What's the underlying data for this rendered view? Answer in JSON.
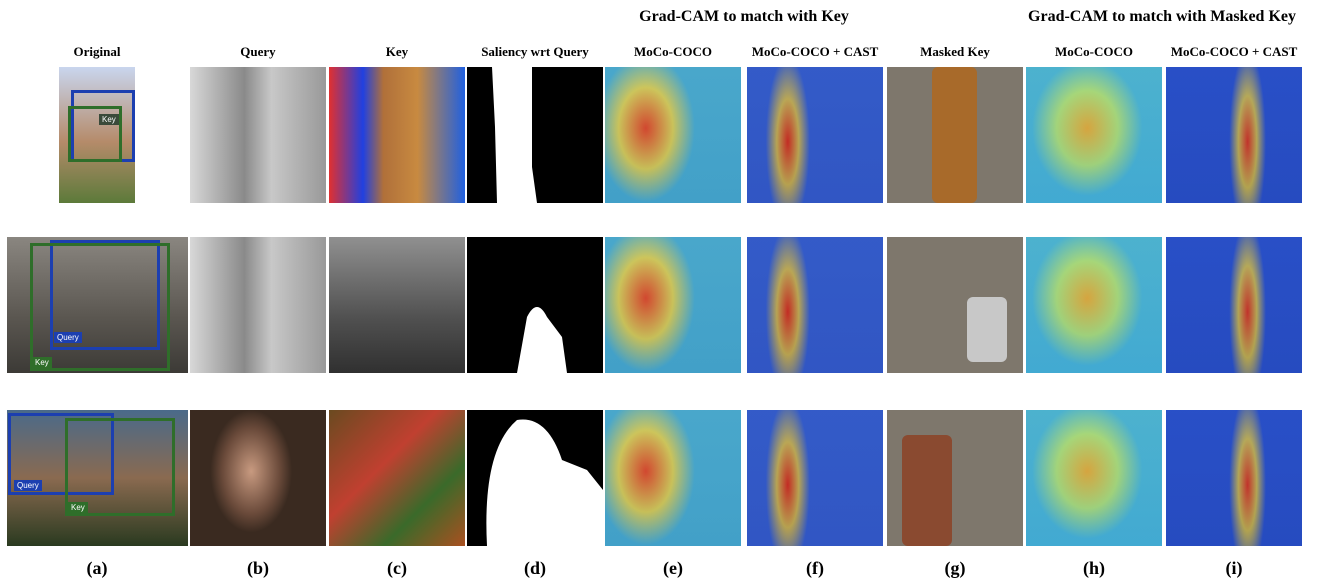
{
  "group_headers": [
    "Grad-CAM to match with Key",
    "Grad-CAM to match with Masked Key"
  ],
  "columns": [
    {
      "header": "Original",
      "label": "(a)"
    },
    {
      "header": "Query",
      "label": "(b)"
    },
    {
      "header": "Key",
      "label": "(c)"
    },
    {
      "header": "Saliency wrt Query",
      "label": "(d)"
    },
    {
      "header": "MoCo-COCO",
      "label": "(e)"
    },
    {
      "header": "MoCo-COCO + CAST",
      "label": "(f)"
    },
    {
      "header": "Masked Key",
      "label": "(g)"
    },
    {
      "header": "MoCo-COCO",
      "label": "(h)"
    },
    {
      "header": "MoCo-COCO + CAST",
      "label": "(i)"
    }
  ],
  "original_boxes": [
    [
      {
        "label": "Key"
      }
    ],
    [
      {
        "label": "Query"
      },
      {
        "label": "Key"
      }
    ],
    [
      {
        "label": "Query"
      },
      {
        "label": "Key"
      }
    ]
  ]
}
